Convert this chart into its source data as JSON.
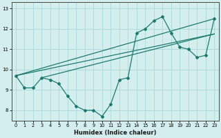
{
  "xlabel": "Humidex (Indice chaleur)",
  "bg_color": "#d4eeee",
  "grid_color": "#a8d8d8",
  "line_color": "#1a7a6e",
  "xlim": [
    -0.5,
    23.5
  ],
  "ylim": [
    7.5,
    13.3
  ],
  "xticks": [
    0,
    1,
    2,
    3,
    4,
    5,
    6,
    7,
    8,
    9,
    10,
    11,
    12,
    13,
    14,
    15,
    16,
    17,
    18,
    19,
    20,
    21,
    22,
    23
  ],
  "yticks": [
    8,
    9,
    10,
    11,
    12,
    13
  ],
  "series1_x": [
    0,
    1,
    2,
    3,
    4,
    5,
    6,
    7,
    8,
    9,
    10,
    11,
    12,
    13,
    14,
    15,
    16,
    17,
    18,
    19,
    20,
    21,
    22,
    23
  ],
  "series1_y": [
    9.7,
    9.1,
    9.1,
    9.6,
    9.5,
    9.3,
    8.7,
    8.2,
    8.0,
    8.0,
    7.7,
    8.3,
    9.5,
    9.6,
    11.8,
    12.0,
    12.4,
    12.6,
    11.8,
    11.1,
    11.0,
    10.6,
    10.7,
    12.5
  ],
  "line1_x": [
    0,
    23
  ],
  "line1_y": [
    9.7,
    12.5
  ],
  "line2_x": [
    0,
    23
  ],
  "line2_y": [
    9.7,
    11.75
  ],
  "line3_x": [
    3,
    23
  ],
  "line3_y": [
    9.6,
    11.75
  ]
}
